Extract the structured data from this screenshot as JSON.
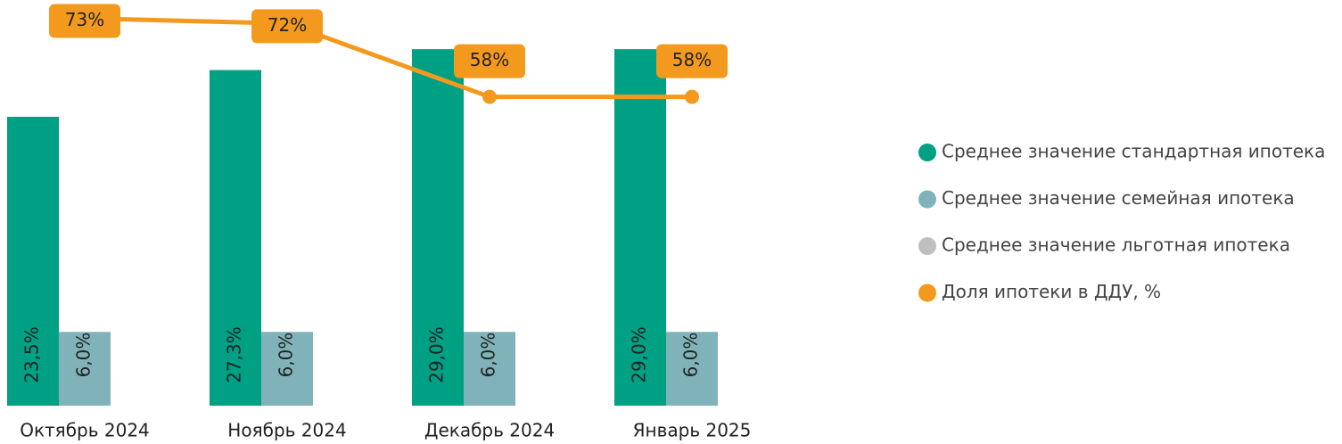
{
  "chart_data": {
    "type": "bar",
    "categories": [
      "Октябрь 2024",
      "Ноябрь 2024",
      "Декабрь 2024",
      "Январь 2025"
    ],
    "ylim": [
      0,
      33
    ],
    "y2lim": [
      -1,
      76.5
    ],
    "legend": "right",
    "series": [
      {
        "name": "Среднее значение стандартная ипотека",
        "type": "bar",
        "color": "#00a085",
        "values": [
          23.5,
          27.3,
          29.0,
          29.0
        ],
        "value_labels": [
          "23,5%",
          "27,3%",
          "29,0%",
          "29,0%"
        ]
      },
      {
        "name": "Среднее значение семейная ипотека",
        "type": "bar",
        "color": "#80b3b9",
        "values": [
          6.0,
          6.0,
          6.0,
          6.0
        ],
        "value_labels": [
          "6,0%",
          "6,0%",
          "6,0%",
          "6,0%"
        ]
      },
      {
        "name": "Среднее значение льготная ипотека",
        "type": "bar",
        "color": "#bfbfbf",
        "values": [
          null,
          null,
          null,
          null
        ]
      },
      {
        "name": "Доля ипотеки в ДДУ, %",
        "type": "line",
        "axis": "y2",
        "color": "#f39a1e",
        "values": [
          73,
          72,
          58,
          58
        ],
        "value_labels": [
          "73%",
          "72%",
          "58%",
          "58%"
        ]
      }
    ]
  }
}
